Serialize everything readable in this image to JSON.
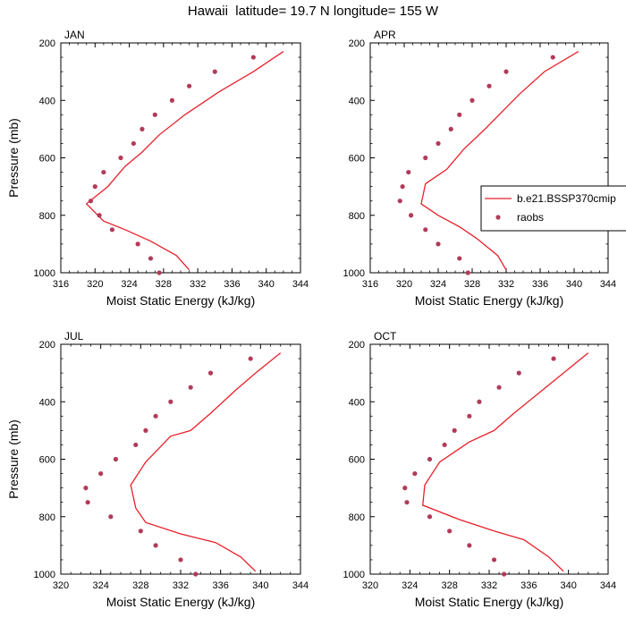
{
  "title": "Hawaii  latitude= 19.7 N longitude= 155 W",
  "colors": {
    "model_line": "#e8202a",
    "raobs_marker": "#b23a5a",
    "axis": "#000000"
  },
  "legend": {
    "placement": "right-middle",
    "entries": [
      {
        "label": "b.e21.BSSP370cmip",
        "kind": "line"
      },
      {
        "label": "raobs",
        "kind": "marker"
      }
    ]
  },
  "chart_data": [
    {
      "type": "scatter",
      "panel": "JAN",
      "xlabel": "Moist Static Energy (kJ/kg)",
      "ylabel": "Pressure (mb)",
      "xlim": [
        316,
        344
      ],
      "xticks": [
        316,
        320,
        324,
        328,
        332,
        336,
        340,
        344
      ],
      "ylim": [
        1000,
        200
      ],
      "yticks": [
        200,
        400,
        600,
        800,
        1000
      ],
      "series": [
        {
          "name": "b.e21.BSSP370cmip",
          "kind": "line",
          "x": [
            342.0,
            338.5,
            334.5,
            330.5,
            327.5,
            325.5,
            323.5,
            321.5,
            319.0,
            321.0,
            323.5,
            326.5,
            329.5,
            331.0
          ],
          "y": [
            230,
            300,
            370,
            450,
            520,
            580,
            630,
            700,
            760,
            820,
            850,
            890,
            940,
            990
          ]
        },
        {
          "name": "raobs",
          "kind": "marker",
          "x": [
            338.5,
            334.0,
            331.0,
            329.0,
            327.0,
            325.5,
            324.5,
            323.0,
            321.0,
            320.0,
            319.5,
            320.5,
            322.0,
            325.0,
            326.5,
            327.5
          ],
          "y": [
            250,
            300,
            350,
            400,
            450,
            500,
            550,
            600,
            650,
            700,
            750,
            800,
            850,
            900,
            950,
            1000
          ]
        }
      ]
    },
    {
      "type": "scatter",
      "panel": "APR",
      "xlabel": "Moist Static Energy (kJ/kg)",
      "ylabel": "",
      "xlim": [
        316,
        344
      ],
      "xticks": [
        316,
        320,
        324,
        328,
        332,
        336,
        340,
        344
      ],
      "ylim": [
        1000,
        200
      ],
      "yticks": [
        200,
        400,
        600,
        800,
        1000
      ],
      "series": [
        {
          "name": "b.e21.BSSP370cmip",
          "kind": "line",
          "x": [
            340.5,
            336.5,
            333.5,
            331.5,
            329.5,
            327.0,
            325.0,
            322.5,
            322.0,
            324.0,
            326.5,
            328.5,
            331.0,
            332.0
          ],
          "y": [
            230,
            300,
            380,
            440,
            500,
            570,
            640,
            690,
            760,
            800,
            840,
            880,
            940,
            990
          ]
        },
        {
          "name": "raobs",
          "kind": "marker",
          "x": [
            337.5,
            332.0,
            330.0,
            328.0,
            326.5,
            325.5,
            324.0,
            322.5,
            320.5,
            319.8,
            319.5,
            320.8,
            322.5,
            324.0,
            326.5,
            327.5
          ],
          "y": [
            250,
            300,
            350,
            400,
            450,
            500,
            550,
            600,
            650,
            700,
            750,
            800,
            850,
            900,
            950,
            1000
          ]
        }
      ]
    },
    {
      "type": "scatter",
      "panel": "JUL",
      "xlabel": "Moist Static Energy (kJ/kg)",
      "ylabel": "Pressure (mb)",
      "xlim": [
        320,
        344
      ],
      "xticks": [
        320,
        324,
        328,
        332,
        336,
        340,
        344
      ],
      "ylim": [
        1000,
        200
      ],
      "yticks": [
        200,
        400,
        600,
        800,
        1000
      ],
      "series": [
        {
          "name": "b.e21.BSSP370cmip",
          "kind": "line",
          "x": [
            342.0,
            339.5,
            337.5,
            335.0,
            333.0,
            331.0,
            328.5,
            327.0,
            327.5,
            328.5,
            332.0,
            335.5,
            338.0,
            339.5
          ],
          "y": [
            230,
            300,
            360,
            440,
            500,
            520,
            610,
            690,
            770,
            820,
            860,
            890,
            940,
            990
          ]
        },
        {
          "name": "raobs",
          "kind": "marker",
          "x": [
            339.0,
            335.0,
            333.0,
            331.0,
            329.5,
            328.5,
            327.5,
            325.5,
            324.0,
            322.5,
            322.7,
            325.0,
            328.0,
            329.5,
            332.0,
            333.5
          ],
          "y": [
            250,
            300,
            350,
            400,
            450,
            500,
            550,
            600,
            650,
            700,
            750,
            800,
            850,
            900,
            950,
            1000
          ]
        }
      ]
    },
    {
      "type": "scatter",
      "panel": "OCT",
      "xlabel": "Moist Static Energy (kJ/kg)",
      "ylabel": "",
      "xlim": [
        320,
        344
      ],
      "xticks": [
        320,
        324,
        328,
        332,
        336,
        340,
        344
      ],
      "ylim": [
        1000,
        200
      ],
      "yticks": [
        200,
        400,
        600,
        800,
        1000
      ],
      "series": [
        {
          "name": "b.e21.BSSP370cmip",
          "kind": "line",
          "x": [
            342.0,
            339.5,
            337.0,
            334.5,
            332.5,
            330.0,
            327.0,
            325.5,
            325.3,
            329.0,
            332.5,
            335.5,
            338.0,
            339.5
          ],
          "y": [
            230,
            300,
            370,
            440,
            500,
            540,
            610,
            690,
            760,
            810,
            850,
            880,
            940,
            990
          ]
        },
        {
          "name": "raobs",
          "kind": "marker",
          "x": [
            338.5,
            335.0,
            333.0,
            331.0,
            330.0,
            328.5,
            327.5,
            326.0,
            324.5,
            323.5,
            323.7,
            326.0,
            328.0,
            330.0,
            332.5,
            333.5
          ],
          "y": [
            250,
            300,
            350,
            400,
            450,
            500,
            550,
            600,
            650,
            700,
            750,
            800,
            850,
            900,
            950,
            1000
          ]
        }
      ]
    }
  ]
}
